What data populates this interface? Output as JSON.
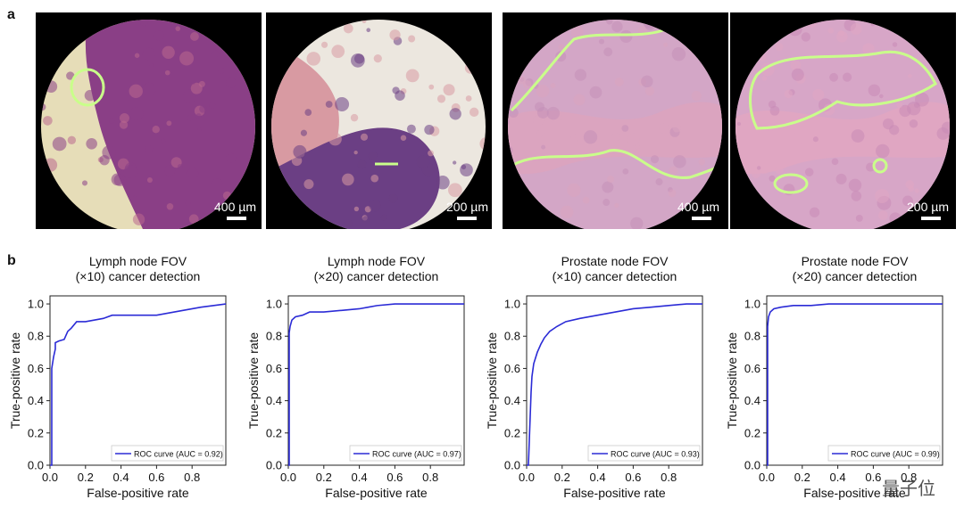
{
  "panel_labels": {
    "a": "a",
    "b": "b"
  },
  "watermark": "量子位",
  "micrographs": [
    {
      "scale_text": "400 µm",
      "colors": {
        "tissue": "#8a3f86",
        "stroma": "#b9678e",
        "bg": "#e6ddb8"
      },
      "has_outline": true
    },
    {
      "scale_text": "200 µm",
      "colors": {
        "tissue": "#6b3f84",
        "stroma": "#d89aa2",
        "bg": "#ece7df"
      },
      "has_outline": true
    },
    {
      "scale_text": "400 µm",
      "colors": {
        "tissue": "#c58fb8",
        "stroma": "#dba4bf",
        "bg": "#e9c9dc"
      },
      "has_outline": true
    },
    {
      "scale_text": "200 µm",
      "colors": {
        "tissue": "#c98ab6",
        "stroma": "#e0a6c2",
        "bg": "#eacfe0"
      },
      "has_outline": true
    }
  ],
  "chart_data": [
    {
      "type": "line",
      "title": "Lymph node FOV\n(×10) cancer detection",
      "xlabel": "False-positive rate",
      "ylabel": "True-positive rate",
      "xlim": [
        0,
        1
      ],
      "ylim": [
        0,
        1
      ],
      "xticks": [
        "0.0",
        "0.2",
        "0.4",
        "0.6",
        "0.8"
      ],
      "yticks": [
        "0.0",
        "0.2",
        "0.4",
        "0.6",
        "0.8",
        "1.0"
      ],
      "legend": {
        "label": "ROC curve (AUC = 0.92)",
        "position": "bottom-right"
      },
      "series": [
        {
          "name": "ROC curve (AUC = 0.92)",
          "color": "#2b2bd6",
          "x": [
            0,
            0.01,
            0.01,
            0.02,
            0.03,
            0.03,
            0.05,
            0.08,
            0.1,
            0.12,
            0.15,
            0.2,
            0.3,
            0.35,
            0.6,
            0.7,
            0.85,
            1.0
          ],
          "y": [
            0,
            0.0,
            0.6,
            0.67,
            0.72,
            0.76,
            0.77,
            0.78,
            0.83,
            0.85,
            0.89,
            0.89,
            0.91,
            0.93,
            0.93,
            0.95,
            0.98,
            1.0
          ]
        }
      ]
    },
    {
      "type": "line",
      "title": "Lymph node FOV\n(×20) cancer detection",
      "xlabel": "False-positive rate",
      "ylabel": "True-positive rate",
      "xlim": [
        0,
        1
      ],
      "ylim": [
        0,
        1
      ],
      "xticks": [
        "0.0",
        "0.2",
        "0.4",
        "0.6",
        "0.8"
      ],
      "yticks": [
        "0.0",
        "0.2",
        "0.4",
        "0.6",
        "0.8",
        "1.0"
      ],
      "legend": {
        "label": "ROC curve (AUC = 0.97)",
        "position": "bottom-right"
      },
      "series": [
        {
          "name": "ROC curve (AUC = 0.97)",
          "color": "#2b2bd6",
          "x": [
            0,
            0.005,
            0.005,
            0.01,
            0.02,
            0.04,
            0.08,
            0.12,
            0.2,
            0.3,
            0.4,
            0.45,
            0.5,
            0.6,
            0.8,
            1.0
          ],
          "y": [
            0,
            0.0,
            0.82,
            0.86,
            0.9,
            0.92,
            0.93,
            0.95,
            0.95,
            0.96,
            0.97,
            0.98,
            0.99,
            1.0,
            1.0,
            1.0
          ]
        }
      ]
    },
    {
      "type": "line",
      "title": "Prostate node FOV\n(×10) cancer detection",
      "xlabel": "False-positive rate",
      "ylabel": "True-positive rate",
      "xlim": [
        0,
        1
      ],
      "ylim": [
        0,
        1
      ],
      "xticks": [
        "0.0",
        "0.2",
        "0.4",
        "0.6",
        "0.8"
      ],
      "yticks": [
        "0.0",
        "0.2",
        "0.4",
        "0.6",
        "0.8",
        "1.0"
      ],
      "legend": {
        "label": "ROC curve (AUC = 0.93)",
        "position": "bottom-right"
      },
      "series": [
        {
          "name": "ROC curve (AUC = 0.93)",
          "color": "#2b2bd6",
          "x": [
            0,
            0.01,
            0.015,
            0.02,
            0.025,
            0.03,
            0.04,
            0.06,
            0.08,
            0.1,
            0.13,
            0.17,
            0.22,
            0.3,
            0.4,
            0.5,
            0.6,
            0.7,
            0.8,
            0.9,
            1.0
          ],
          "y": [
            0,
            0.0,
            0.15,
            0.3,
            0.45,
            0.55,
            0.63,
            0.7,
            0.75,
            0.79,
            0.83,
            0.86,
            0.89,
            0.91,
            0.93,
            0.95,
            0.97,
            0.98,
            0.99,
            1.0,
            1.0
          ]
        }
      ]
    },
    {
      "type": "line",
      "title": "Prostate node FOV\n(×20) cancer detection",
      "xlabel": "False-positive rate",
      "ylabel": "True-positive rate",
      "xlim": [
        0,
        1
      ],
      "ylim": [
        0,
        1
      ],
      "xticks": [
        "0.0",
        "0.2",
        "0.4",
        "0.6",
        "0.8"
      ],
      "yticks": [
        "0.0",
        "0.2",
        "0.4",
        "0.6",
        "0.8",
        "1.0"
      ],
      "legend": {
        "label": "ROC curve (AUC = 0.99)",
        "position": "bottom-right"
      },
      "series": [
        {
          "name": "ROC curve (AUC = 0.99)",
          "color": "#2b2bd6",
          "x": [
            0,
            0.005,
            0.005,
            0.01,
            0.02,
            0.04,
            0.08,
            0.15,
            0.25,
            0.35,
            0.5,
            0.7,
            1.0
          ],
          "y": [
            0,
            0.0,
            0.86,
            0.92,
            0.95,
            0.97,
            0.98,
            0.99,
            0.99,
            1.0,
            1.0,
            1.0,
            1.0
          ]
        }
      ]
    }
  ]
}
